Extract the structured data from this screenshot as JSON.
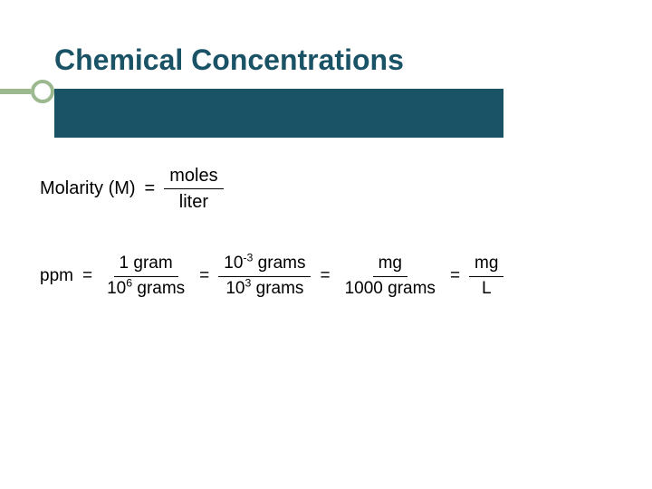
{
  "slide": {
    "title": "Chemical Concentrations",
    "accent_color": "#9bb88f",
    "bar_color": "#1a5266",
    "background_color": "#ffffff",
    "title_fontsize": 32,
    "title_color": "#1a5266",
    "formula_color": "#000000"
  },
  "formula_molarity": {
    "lhs": "Molarity (M)",
    "eq": "=",
    "numerator": "moles",
    "denominator": "liter"
  },
  "formula_ppm": {
    "lhs": "ppm",
    "eq": "=",
    "term1_num": "1 gram",
    "term1_den_base": "10",
    "term1_den_exp": "6",
    "term1_den_tail": " grams",
    "term2_num_base": "10",
    "term2_num_exp": "-3",
    "term2_num_tail": " grams",
    "term2_den_base": "10",
    "term2_den_exp": "3",
    "term2_den_tail": " grams",
    "term3_num": "mg",
    "term3_den": "1000 grams",
    "term4_num": "mg",
    "term4_den": "L"
  }
}
